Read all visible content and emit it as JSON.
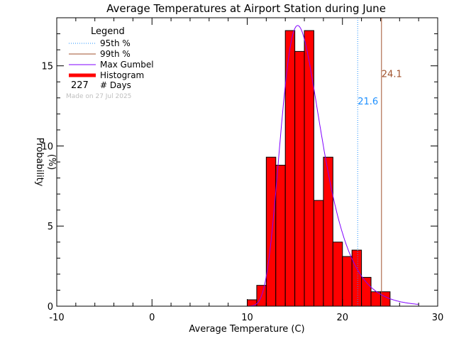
{
  "chart_data": {
    "type": "bar",
    "title": "Average Temperatures at Airport Station during June",
    "xlabel": "Average Temperature (C)",
    "ylabel_line1": "Probability",
    "ylabel_line2": "(%)",
    "xlim": [
      -10,
      30
    ],
    "ylim": [
      0,
      18
    ],
    "xticks": [
      -10,
      0,
      10,
      20,
      30
    ],
    "xtick_labels": [
      "-10",
      "0",
      "10",
      "20",
      "30"
    ],
    "yticks": [
      0,
      5,
      10,
      15
    ],
    "ytick_labels": [
      "0",
      "5",
      "10",
      "15"
    ],
    "bin_width": 1,
    "histogram": {
      "name": "Histogram",
      "color": "#ff0000",
      "bin_starts": [
        10,
        11,
        12,
        13,
        14,
        15,
        16,
        17,
        18,
        19,
        20,
        21,
        22,
        23,
        24
      ],
      "values": [
        0.4,
        1.3,
        9.3,
        8.8,
        17.2,
        15.9,
        17.2,
        6.6,
        9.3,
        4.0,
        3.1,
        3.5,
        1.8,
        0.9,
        0.9
      ]
    },
    "gumbel": {
      "name": "Max Gumbel",
      "color": "#8000ff",
      "mode": 15.3,
      "scale": 2.1
    },
    "percentile_95": {
      "name": "95th %",
      "value": 21.6,
      "label": "21.6",
      "color": "#1e90ff"
    },
    "percentile_99": {
      "name": "99th %",
      "value": 24.1,
      "label": "24.1",
      "color": "#a0522d"
    },
    "legend": {
      "title": "Legend",
      "placement": "top-left",
      "days_count": "227",
      "days_label": "# Days"
    },
    "note": "Made on 27 Jul 2025"
  }
}
